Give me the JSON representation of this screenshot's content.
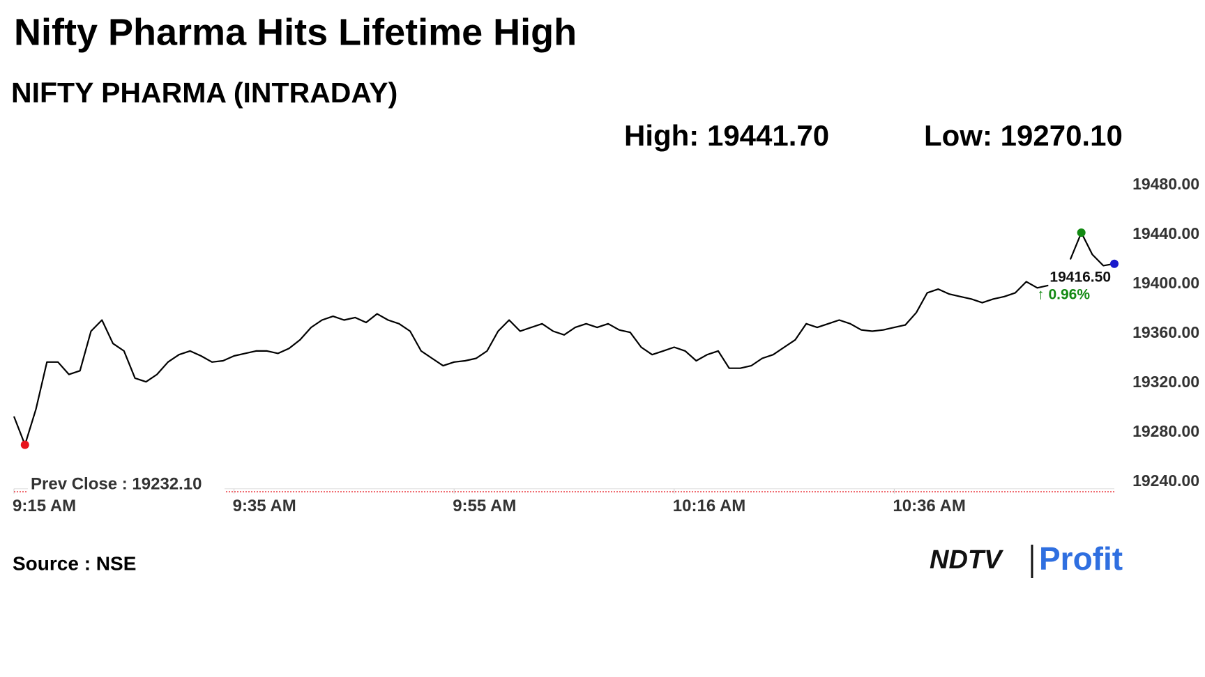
{
  "chart_data": {
    "type": "line",
    "title": "Nifty Pharma Hits Lifetime High",
    "subtitle": "NIFTY PHARMA (INTRADAY)",
    "high_label": "High: 19441.70",
    "low_label": "Low: 19270.10",
    "categories": [
      "9:15 AM",
      null,
      null,
      null,
      null,
      null,
      null,
      null,
      null,
      null,
      null,
      null,
      null,
      null,
      null,
      null,
      null,
      null,
      null,
      null,
      "9:35 AM",
      null,
      null,
      null,
      null,
      null,
      null,
      null,
      null,
      null,
      null,
      null,
      null,
      null,
      null,
      null,
      null,
      null,
      null,
      null,
      "9:55 AM",
      null,
      null,
      null,
      null,
      null,
      null,
      null,
      null,
      null,
      null,
      null,
      null,
      null,
      null,
      null,
      null,
      null,
      null,
      null,
      "10:16 AM",
      null,
      null,
      null,
      null,
      null,
      null,
      null,
      null,
      null,
      null,
      null,
      null,
      null,
      null,
      null,
      null,
      null,
      null,
      null,
      "10:36 AM",
      null,
      null,
      null,
      null,
      null,
      null,
      null,
      null,
      null,
      null,
      null,
      null,
      null,
      null,
      null,
      null,
      null,
      null,
      null,
      null
    ],
    "values": [
      19293,
      19270.1,
      19299,
      19337,
      19337,
      19327,
      19330,
      19362,
      19371,
      19352,
      19346,
      19324,
      19321,
      19327,
      19337,
      19343,
      19346,
      19342,
      19337,
      19338,
      19342,
      19344,
      19346,
      19346,
      19344,
      19348,
      19355,
      19365,
      19371,
      19374,
      19371,
      19373,
      19369,
      19376,
      19371,
      19368,
      19362,
      19346,
      19340,
      19334,
      19337,
      19338,
      19340,
      19346,
      19362,
      19371,
      19362,
      19365,
      19368,
      19362,
      19359,
      19365,
      19368,
      19365,
      19368,
      19363,
      19361,
      19349,
      19343,
      19346,
      19349,
      19346,
      19338,
      19343,
      19346,
      19332,
      19332,
      19334,
      19340,
      19343,
      19349,
      19355,
      19368,
      19365,
      19368,
      19371,
      19368,
      19363,
      19362,
      19363,
      19365,
      19367,
      19377,
      19393,
      19396,
      19392,
      19390,
      19388,
      19385,
      19388,
      19390,
      19393,
      19402,
      19397,
      19399,
      null,
      19420,
      19441.7,
      19424,
      19415,
      19416.5
    ],
    "color": "#000000",
    "low_color": "#e8141c",
    "high_color": "#138a13",
    "last_color": "#1a1acc",
    "last_label": "19416.50",
    "change_label": "↑ 0.96%",
    "change_color": "#138a13",
    "reference_line": {
      "label": "Prev Close : 19232.10",
      "value": 19232.1,
      "color": "#e8141c"
    },
    "ylim": [
      19230,
      19480
    ],
    "yticks": [
      {
        "value": 19240,
        "label": "19240.00"
      },
      {
        "value": 19280,
        "label": "19280.00"
      },
      {
        "value": 19320,
        "label": "19320.00"
      },
      {
        "value": 19360,
        "label": "19360.00"
      },
      {
        "value": 19400,
        "label": "19400.00"
      },
      {
        "value": 19440,
        "label": "19440.00"
      },
      {
        "value": 19480,
        "label": "19480.00"
      }
    ],
    "source": "Source : NSE",
    "logo_left": "NDTV",
    "logo_right": "Profit"
  }
}
